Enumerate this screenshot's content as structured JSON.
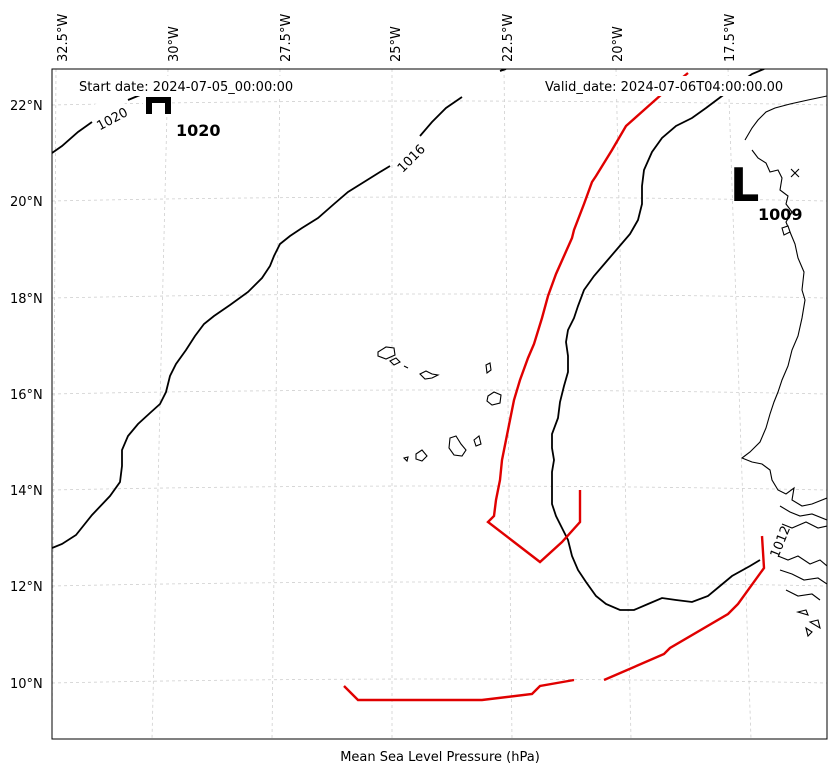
{
  "map": {
    "start_date": "Start date: 2024-07-05_00:00:00",
    "valid_date": "Valid_date: 2024-07-06T04:00:00.00",
    "xlabel": "Mean Sea Level Pressure (hPa)",
    "lon_ticks": [
      "32.5°W",
      "30°W",
      "27.5°W",
      "25°W",
      "22.5°W",
      "20°W",
      "17.5°W"
    ],
    "lat_ticks": [
      "22°N",
      "20°N",
      "18°N",
      "16°N",
      "14°N",
      "12°N",
      "10°N"
    ],
    "isobars": [
      {
        "value": "1020",
        "label": "1020"
      },
      {
        "value": "1016",
        "label": "1016"
      },
      {
        "value": "1012",
        "label": "1012"
      }
    ],
    "pressure_centers": [
      {
        "type": "H",
        "value": "1020"
      },
      {
        "type": "L",
        "value": "1009"
      }
    ],
    "track_color": "#e00000",
    "isobar_color": "#000000"
  }
}
